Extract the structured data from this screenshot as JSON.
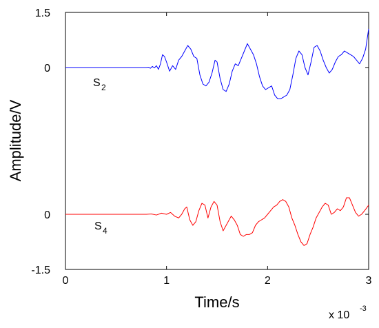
{
  "chart_data": {
    "type": "line",
    "xlabel": "Time/s",
    "ylabel": "Amplitude/V",
    "x_multiplier": {
      "base": "x 10",
      "exponent": "-3"
    },
    "xlim": [
      0,
      0.003
    ],
    "x_ticks": [
      0,
      0.001,
      0.002,
      0.003
    ],
    "x_tick_labels": [
      "0",
      "1",
      "2",
      "3"
    ],
    "grid": false,
    "layout": "two stacked panels sharing one time axis",
    "panels": [
      {
        "series_name": "S",
        "series_subscript": "2",
        "color": "#0000ff",
        "ylim": [
          -1.5,
          1.5
        ],
        "y_ticks": [
          0,
          1.5
        ],
        "y_tick_labels": [
          "0",
          "1.5"
        ],
        "points": [
          [
            0,
            0
          ],
          [
            0.0008,
            0
          ],
          [
            0.00082,
            0.01
          ],
          [
            0.00084,
            -0.02
          ],
          [
            0.00086,
            0.03
          ],
          [
            0.00088,
            -0.01
          ],
          [
            0.0009,
            0.05
          ],
          [
            0.00092,
            -0.05
          ],
          [
            0.00094,
            0.1
          ],
          [
            0.00096,
            0.35
          ],
          [
            0.00098,
            0.3
          ],
          [
            0.001,
            0.15
          ],
          [
            0.00103,
            -0.1
          ],
          [
            0.00106,
            0.05
          ],
          [
            0.00109,
            -0.05
          ],
          [
            0.00112,
            0.2
          ],
          [
            0.00115,
            0.3
          ],
          [
            0.00118,
            0.45
          ],
          [
            0.00121,
            0.6
          ],
          [
            0.00124,
            0.5
          ],
          [
            0.00127,
            0.3
          ],
          [
            0.0013,
            0.25
          ],
          [
            0.00133,
            -0.2
          ],
          [
            0.00136,
            -0.45
          ],
          [
            0.00139,
            -0.5
          ],
          [
            0.00142,
            -0.4
          ],
          [
            0.00145,
            -0.15
          ],
          [
            0.00148,
            0.2
          ],
          [
            0.0015,
            0.15
          ],
          [
            0.00153,
            -0.3
          ],
          [
            0.00156,
            -0.6
          ],
          [
            0.00159,
            -0.65
          ],
          [
            0.00162,
            -0.45
          ],
          [
            0.00165,
            -0.1
          ],
          [
            0.00168,
            0.1
          ],
          [
            0.00171,
            0.05
          ],
          [
            0.00174,
            0.25
          ],
          [
            0.00177,
            0.45
          ],
          [
            0.0018,
            0.65
          ],
          [
            0.00183,
            0.5
          ],
          [
            0.00186,
            0.35
          ],
          [
            0.00189,
            0.1
          ],
          [
            0.00192,
            -0.25
          ],
          [
            0.00195,
            -0.5
          ],
          [
            0.00198,
            -0.6
          ],
          [
            0.00201,
            -0.55
          ],
          [
            0.00204,
            -0.5
          ],
          [
            0.00207,
            -0.75
          ],
          [
            0.0021,
            -0.85
          ],
          [
            0.00213,
            -0.85
          ],
          [
            0.00216,
            -0.8
          ],
          [
            0.00219,
            -0.75
          ],
          [
            0.00222,
            -0.6
          ],
          [
            0.00225,
            -0.2
          ],
          [
            0.00228,
            0.25
          ],
          [
            0.00231,
            0.45
          ],
          [
            0.00234,
            0.35
          ],
          [
            0.00237,
            0.0
          ],
          [
            0.0024,
            -0.2
          ],
          [
            0.00243,
            0.15
          ],
          [
            0.00246,
            0.55
          ],
          [
            0.00249,
            0.6
          ],
          [
            0.00252,
            0.45
          ],
          [
            0.00255,
            0.2
          ],
          [
            0.00258,
            0.0
          ],
          [
            0.00261,
            -0.15
          ],
          [
            0.00264,
            -0.05
          ],
          [
            0.00267,
            0.15
          ],
          [
            0.0027,
            0.3
          ],
          [
            0.00273,
            0.35
          ],
          [
            0.00276,
            0.45
          ],
          [
            0.00279,
            0.4
          ],
          [
            0.00282,
            0.35
          ],
          [
            0.00285,
            0.3
          ],
          [
            0.00288,
            0.2
          ],
          [
            0.00291,
            0.1
          ],
          [
            0.00294,
            0.25
          ],
          [
            0.00297,
            0.5
          ],
          [
            0.003,
            1.05
          ]
        ]
      },
      {
        "series_name": "S",
        "series_subscript": "4",
        "color": "#ff0000",
        "ylim": [
          -1.5,
          1.5
        ],
        "y_ticks": [
          -1.5,
          0
        ],
        "y_tick_labels": [
          "-1.5",
          "0"
        ],
        "points": [
          [
            0,
            0
          ],
          [
            0.0008,
            0
          ],
          [
            0.00085,
            0.01
          ],
          [
            0.0009,
            -0.02
          ],
          [
            0.00095,
            0.03
          ],
          [
            0.001,
            0.0
          ],
          [
            0.00104,
            0.05
          ],
          [
            0.00108,
            -0.05
          ],
          [
            0.00112,
            -0.1
          ],
          [
            0.00115,
            0.0
          ],
          [
            0.00118,
            0.15
          ],
          [
            0.0012,
            0.2
          ],
          [
            0.00123,
            -0.15
          ],
          [
            0.00126,
            -0.3
          ],
          [
            0.00129,
            -0.2
          ],
          [
            0.00132,
            0.1
          ],
          [
            0.00135,
            0.3
          ],
          [
            0.00138,
            0.25
          ],
          [
            0.00141,
            -0.1
          ],
          [
            0.00144,
            0.2
          ],
          [
            0.00147,
            0.35
          ],
          [
            0.0015,
            0.25
          ],
          [
            0.00153,
            -0.2
          ],
          [
            0.00156,
            -0.45
          ],
          [
            0.00158,
            -0.35
          ],
          [
            0.00161,
            -0.2
          ],
          [
            0.00164,
            -0.05
          ],
          [
            0.00167,
            -0.15
          ],
          [
            0.0017,
            -0.3
          ],
          [
            0.00173,
            -0.55
          ],
          [
            0.00176,
            -0.6
          ],
          [
            0.00179,
            -0.55
          ],
          [
            0.00182,
            -0.55
          ],
          [
            0.00185,
            -0.5
          ],
          [
            0.00188,
            -0.3
          ],
          [
            0.00191,
            -0.2
          ],
          [
            0.00194,
            -0.15
          ],
          [
            0.00197,
            -0.1
          ],
          [
            0.002,
            0.0
          ],
          [
            0.00203,
            0.1
          ],
          [
            0.00206,
            0.2
          ],
          [
            0.00209,
            0.25
          ],
          [
            0.00212,
            0.35
          ],
          [
            0.00215,
            0.4
          ],
          [
            0.00218,
            0.35
          ],
          [
            0.00221,
            0.2
          ],
          [
            0.00224,
            -0.1
          ],
          [
            0.00227,
            -0.3
          ],
          [
            0.0023,
            -0.55
          ],
          [
            0.00233,
            -0.75
          ],
          [
            0.00236,
            -0.85
          ],
          [
            0.00239,
            -0.8
          ],
          [
            0.00242,
            -0.55
          ],
          [
            0.00245,
            -0.35
          ],
          [
            0.00248,
            -0.1
          ],
          [
            0.00251,
            0.05
          ],
          [
            0.00254,
            0.2
          ],
          [
            0.00257,
            0.3
          ],
          [
            0.0026,
            0.25
          ],
          [
            0.00263,
            0.0
          ],
          [
            0.00266,
            0.05
          ],
          [
            0.00269,
            0.15
          ],
          [
            0.00272,
            0.1
          ],
          [
            0.00275,
            0.2
          ],
          [
            0.00278,
            0.45
          ],
          [
            0.00281,
            0.45
          ],
          [
            0.00284,
            0.25
          ],
          [
            0.00287,
            0.05
          ],
          [
            0.0029,
            -0.05
          ],
          [
            0.00293,
            0.0
          ],
          [
            0.00296,
            0.1
          ],
          [
            0.003,
            0.25
          ]
        ]
      }
    ]
  }
}
